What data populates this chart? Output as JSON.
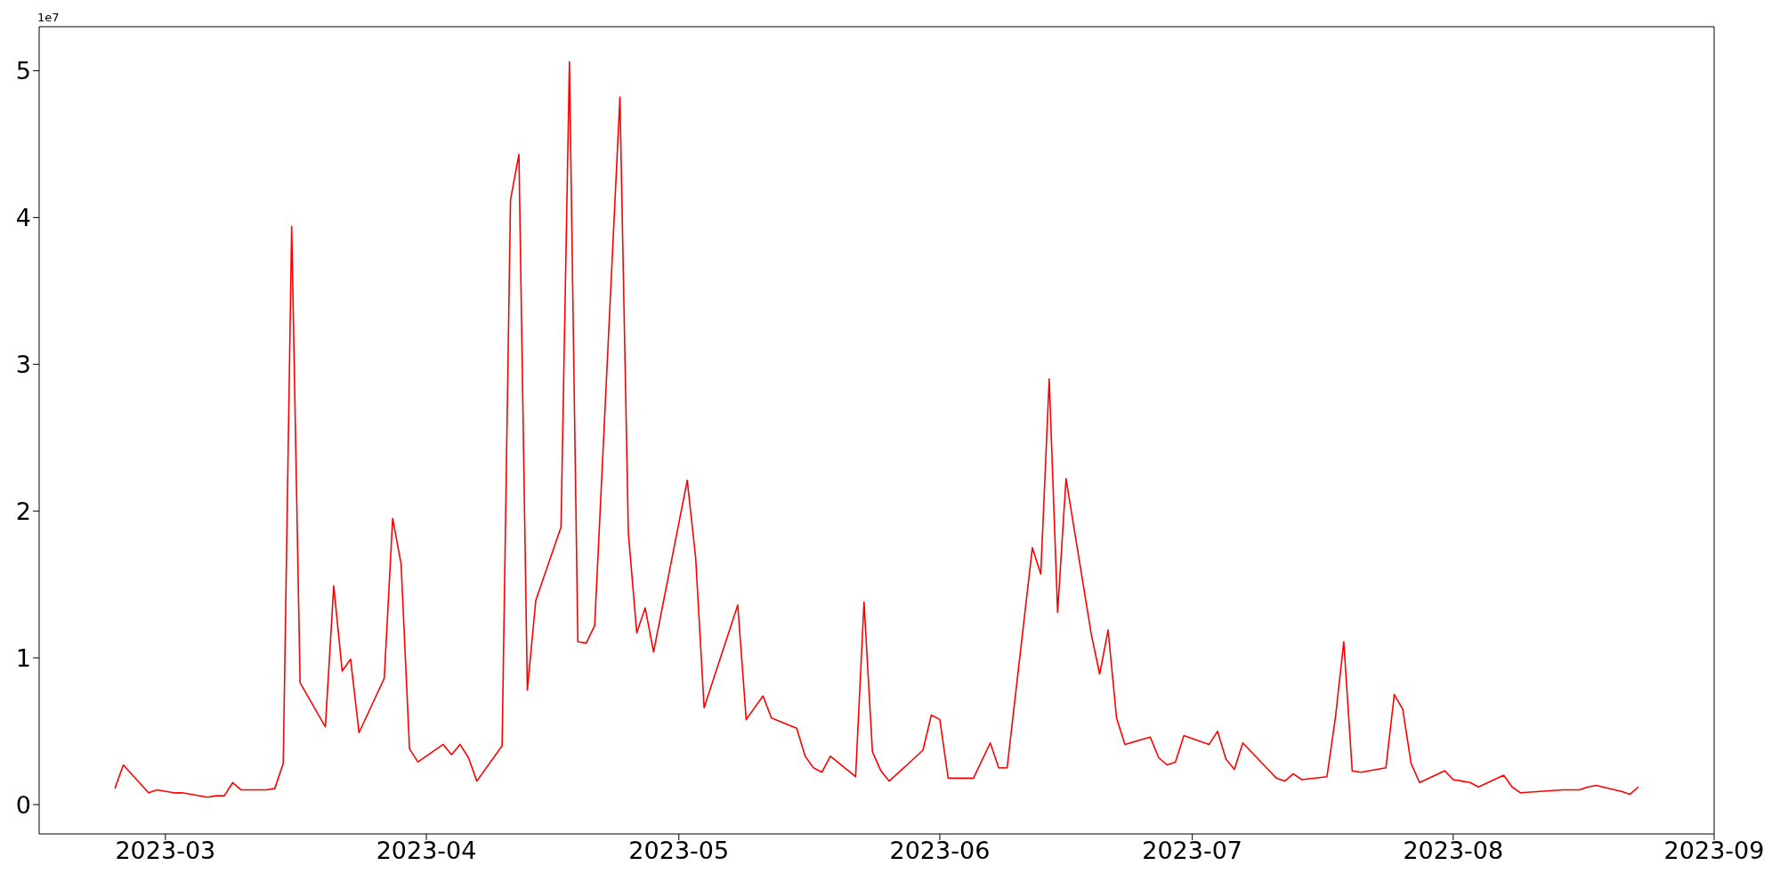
{
  "chart_data": {
    "type": "line",
    "annotations": [
      "1e7"
    ],
    "x": [
      "2023-02-23",
      "2023-02-24",
      "2023-02-27",
      "2023-02-28",
      "2023-03-02",
      "2023-03-03",
      "2023-03-06",
      "2023-03-07",
      "2023-03-08",
      "2023-03-09",
      "2023-03-10",
      "2023-03-13",
      "2023-03-14",
      "2023-03-15",
      "2023-03-16",
      "2023-03-17",
      "2023-03-20",
      "2023-03-21",
      "2023-03-22",
      "2023-03-23",
      "2023-03-24",
      "2023-03-27",
      "2023-03-28",
      "2023-03-29",
      "2023-03-30",
      "2023-03-31",
      "2023-04-03",
      "2023-04-04",
      "2023-04-05",
      "2023-04-06",
      "2023-04-07",
      "2023-04-10",
      "2023-04-11",
      "2023-04-12",
      "2023-04-13",
      "2023-04-14",
      "2023-04-17",
      "2023-04-18",
      "2023-04-19",
      "2023-04-20",
      "2023-04-21",
      "2023-04-24",
      "2023-04-25",
      "2023-04-26",
      "2023-04-27",
      "2023-04-28",
      "2023-05-02",
      "2023-05-03",
      "2023-05-04",
      "2023-05-08",
      "2023-05-09",
      "2023-05-11",
      "2023-05-12",
      "2023-05-15",
      "2023-05-16",
      "2023-05-17",
      "2023-05-18",
      "2023-05-19",
      "2023-05-22",
      "2023-05-23",
      "2023-05-24",
      "2023-05-25",
      "2023-05-26",
      "2023-05-30",
      "2023-05-31",
      "2023-06-01",
      "2023-06-02",
      "2023-06-05",
      "2023-06-07",
      "2023-06-08",
      "2023-06-09",
      "2023-06-12",
      "2023-06-13",
      "2023-06-14",
      "2023-06-15",
      "2023-06-16",
      "2023-06-19",
      "2023-06-20",
      "2023-06-21",
      "2023-06-22",
      "2023-06-23",
      "2023-06-26",
      "2023-06-27",
      "2023-06-28",
      "2023-06-29",
      "2023-06-30",
      "2023-07-03",
      "2023-07-04",
      "2023-07-05",
      "2023-07-06",
      "2023-07-07",
      "2023-07-10",
      "2023-07-11",
      "2023-07-12",
      "2023-07-13",
      "2023-07-14",
      "2023-07-17",
      "2023-07-18",
      "2023-07-19",
      "2023-07-20",
      "2023-07-21",
      "2023-07-24",
      "2023-07-25",
      "2023-07-26",
      "2023-07-27",
      "2023-07-28",
      "2023-07-31",
      "2023-08-01",
      "2023-08-02",
      "2023-08-03",
      "2023-08-04",
      "2023-08-07",
      "2023-08-08",
      "2023-08-09",
      "2023-08-14",
      "2023-08-16",
      "2023-08-17",
      "2023-08-18",
      "2023-08-21",
      "2023-08-22",
      "2023-08-23"
    ],
    "series": [
      {
        "color": "#ff0000",
        "values": [
          0.11,
          0.27,
          0.08,
          0.1,
          0.08,
          0.08,
          0.05,
          0.06,
          0.06,
          0.15,
          0.1,
          0.1,
          0.11,
          0.28,
          3.94,
          0.83,
          0.53,
          1.49,
          0.91,
          0.99,
          0.49,
          0.86,
          1.95,
          1.64,
          0.38,
          0.29,
          0.41,
          0.34,
          0.41,
          0.32,
          0.16,
          0.4,
          4.12,
          4.43,
          0.78,
          1.39,
          1.89,
          5.06,
          1.11,
          1.1,
          1.22,
          4.82,
          1.85,
          1.17,
          1.34,
          1.04,
          2.21,
          1.68,
          0.66,
          1.36,
          0.58,
          0.74,
          0.59,
          0.52,
          0.33,
          0.25,
          0.22,
          0.33,
          0.19,
          1.38,
          0.36,
          0.23,
          0.16,
          0.37,
          0.61,
          0.58,
          0.18,
          0.18,
          0.42,
          0.25,
          0.25,
          1.75,
          1.57,
          2.9,
          1.31,
          2.22,
          1.16,
          0.89,
          1.19,
          0.59,
          0.41,
          0.46,
          0.32,
          0.27,
          0.29,
          0.47,
          0.41,
          0.5,
          0.31,
          0.24,
          0.42,
          0.24,
          0.18,
          0.16,
          0.21,
          0.17,
          0.19,
          0.59,
          1.11,
          0.23,
          0.22,
          0.25,
          0.75,
          0.65,
          0.28,
          0.15,
          0.23,
          0.17,
          0.16,
          0.15,
          0.12,
          0.2,
          0.12,
          0.08,
          0.1,
          0.1,
          0.12,
          0.13,
          0.09,
          0.07,
          0.12
        ]
      }
    ],
    "xlim": [
      "2023-02-14",
      "2023-09-01"
    ],
    "xticks": [
      "2023-03",
      "2023-04",
      "2023-05",
      "2023-06",
      "2023-07",
      "2023-08",
      "2023-09"
    ],
    "ylim": [
      -0.2,
      5.3
    ],
    "yticks": [
      0,
      1,
      2,
      3,
      4,
      5
    ]
  }
}
